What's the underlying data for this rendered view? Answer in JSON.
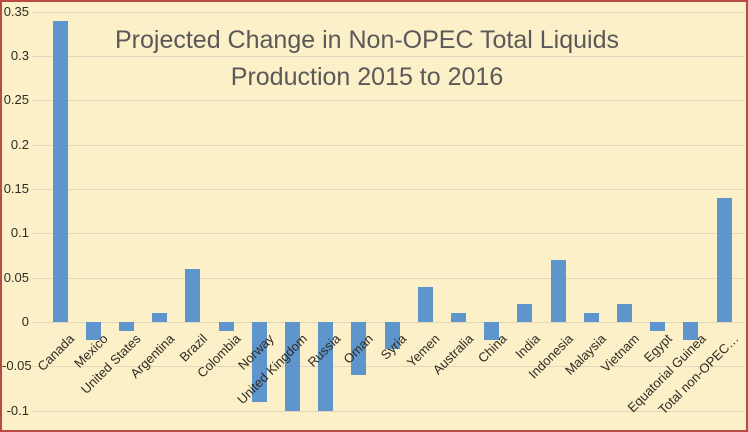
{
  "chart_data": {
    "type": "bar",
    "title": "Projected Change in Non-OPEC Total Liquids Production 2015 to 2016",
    "categories": [
      "Canada",
      "Mexico",
      "United States",
      "Argentina",
      "Brazil",
      "Colombia",
      "Norway",
      "United Kingdom",
      "Russia",
      "Oman",
      "Syria",
      "Yemen",
      "Australia",
      "China",
      "India",
      "Indonesia",
      "Malaysia",
      "Vietnam",
      "Egypt",
      "Equatorial Guinea",
      "Total non-OPEC…"
    ],
    "values": [
      0.34,
      -0.02,
      -0.01,
      0.01,
      0.06,
      -0.01,
      -0.09,
      -0.1,
      -0.1,
      -0.06,
      -0.03,
      0.04,
      0.01,
      -0.02,
      0.02,
      0.07,
      0.01,
      0.02,
      -0.01,
      -0.02,
      0.14
    ],
    "xlabel": "",
    "ylabel": "",
    "ylim": [
      -0.1,
      0.35
    ],
    "ytick_step": 0.05,
    "yticks": [
      "0.35",
      "0.3",
      "0.25",
      "0.2",
      "0.15",
      "0.1",
      "0.05",
      "0",
      "-0.05",
      "-0.1"
    ],
    "grid": true,
    "legend": false,
    "x_label_rotation_deg": 45,
    "colors": {
      "bar": "#5E95CC",
      "background": "#FCF0C9",
      "gridline": "#E2D6BC",
      "border": "#B94A42",
      "title_text": "#595959",
      "axis_text": "#2F2B24"
    }
  }
}
